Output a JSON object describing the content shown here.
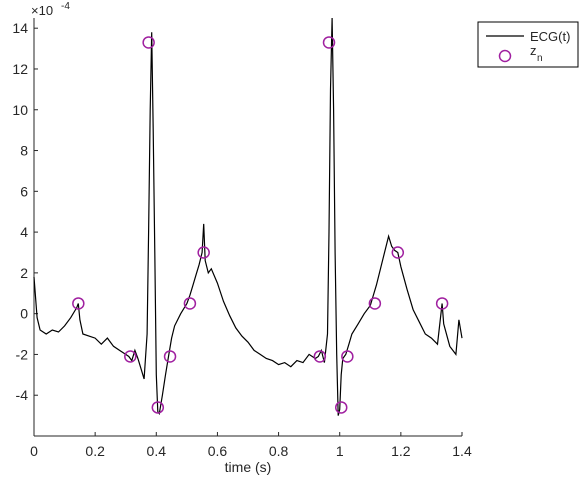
{
  "chart_data": {
    "type": "line",
    "xlabel": "time (s)",
    "ylabel": "",
    "y_exponent_label": "×10",
    "y_exponent_power": "-4",
    "xlim": [
      0,
      1.4
    ],
    "ylim": [
      -6,
      14.5
    ],
    "x_ticks": [
      0,
      0.2,
      0.4,
      0.6,
      0.8,
      1,
      1.2,
      1.4
    ],
    "x_tick_labels": [
      "0",
      "0.2",
      "0.4",
      "0.6",
      "0.8",
      "1",
      "1.2",
      "1.4"
    ],
    "y_ticks": [
      -4,
      -2,
      0,
      2,
      4,
      6,
      8,
      10,
      12,
      14
    ],
    "y_tick_labels": [
      "-4",
      "-2",
      "0",
      "2",
      "4",
      "6",
      "8",
      "10",
      "12",
      "14"
    ],
    "legend_position": "top-right",
    "grid": false,
    "colors": {
      "line": "#000000",
      "marker": "#a020a0",
      "axis": "#262626"
    },
    "series": [
      {
        "name": "ECG(t)",
        "kind": "line",
        "x": [
          0.0,
          0.01,
          0.02,
          0.04,
          0.06,
          0.08,
          0.1,
          0.12,
          0.14,
          0.145,
          0.15,
          0.16,
          0.18,
          0.2,
          0.22,
          0.24,
          0.26,
          0.28,
          0.3,
          0.31,
          0.32,
          0.33,
          0.34,
          0.35,
          0.36,
          0.37,
          0.375,
          0.38,
          0.385,
          0.39,
          0.395,
          0.4,
          0.405,
          0.41,
          0.42,
          0.43,
          0.44,
          0.45,
          0.46,
          0.48,
          0.5,
          0.51,
          0.52,
          0.53,
          0.54,
          0.55,
          0.555,
          0.56,
          0.57,
          0.58,
          0.6,
          0.62,
          0.64,
          0.66,
          0.68,
          0.7,
          0.72,
          0.74,
          0.76,
          0.78,
          0.8,
          0.82,
          0.84,
          0.86,
          0.88,
          0.9,
          0.92,
          0.93,
          0.94,
          0.95,
          0.96,
          0.965,
          0.97,
          0.975,
          0.98,
          0.985,
          0.99,
          0.995,
          1.0,
          1.005,
          1.01,
          1.02,
          1.03,
          1.04,
          1.06,
          1.08,
          1.1,
          1.12,
          1.14,
          1.16,
          1.17,
          1.18,
          1.19,
          1.2,
          1.22,
          1.24,
          1.26,
          1.28,
          1.3,
          1.32,
          1.335,
          1.34,
          1.36,
          1.38,
          1.39,
          1.4
        ],
        "y": [
          1.8,
          -0.2,
          -0.8,
          -1.0,
          -0.8,
          -0.9,
          -0.6,
          -0.2,
          0.3,
          0.5,
          -0.3,
          -1.0,
          -1.1,
          -1.2,
          -1.5,
          -1.2,
          -1.6,
          -1.8,
          -2.0,
          -2.1,
          -2.3,
          -1.8,
          -2.2,
          -2.7,
          -3.2,
          -1.0,
          4.0,
          10.0,
          13.8,
          9.0,
          3.0,
          -3.0,
          -4.8,
          -4.9,
          -4.0,
          -3.0,
          -2.1,
          -1.2,
          -0.6,
          0.0,
          0.5,
          0.9,
          1.4,
          1.9,
          2.4,
          3.0,
          4.4,
          2.6,
          2.0,
          2.2,
          1.5,
          0.6,
          -0.1,
          -0.7,
          -1.1,
          -1.4,
          -1.8,
          -2.0,
          -2.2,
          -2.3,
          -2.5,
          -2.4,
          -2.6,
          -2.3,
          -2.4,
          -2.0,
          -2.2,
          -2.1,
          -1.8,
          -2.4,
          -1.0,
          4.0,
          11.0,
          14.5,
          10.0,
          3.0,
          -2.0,
          -5.0,
          -4.7,
          -3.0,
          -2.2,
          -2.0,
          -1.5,
          -1.0,
          -0.5,
          0.0,
          0.4,
          1.4,
          2.6,
          3.8,
          3.3,
          3.1,
          3.0,
          2.3,
          1.2,
          0.2,
          -0.4,
          -1.0,
          -1.2,
          -1.5,
          0.5,
          -0.5,
          -1.6,
          -2.0,
          -0.3,
          -1.2
        ]
      },
      {
        "name": "z_n",
        "kind": "scatter",
        "marker": "circle",
        "x": [
          0.145,
          0.315,
          0.375,
          0.405,
          0.445,
          0.51,
          0.555,
          0.935,
          0.965,
          1.005,
          1.025,
          1.115,
          1.19,
          1.335
        ],
        "y": [
          0.5,
          -2.1,
          13.3,
          -4.6,
          -2.1,
          0.5,
          3.0,
          -2.1,
          13.3,
          -4.6,
          -2.1,
          0.5,
          3.0,
          0.5
        ]
      }
    ],
    "legend": {
      "line_label": "ECG(t)",
      "marker_label_main": "z",
      "marker_label_sub": "n"
    }
  }
}
